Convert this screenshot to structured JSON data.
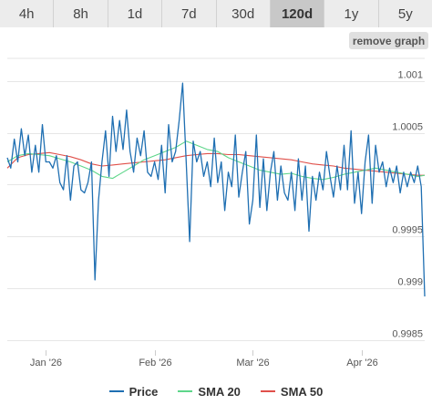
{
  "tabs": [
    {
      "label": "4h",
      "active": false
    },
    {
      "label": "8h",
      "active": false
    },
    {
      "label": "1d",
      "active": false
    },
    {
      "label": "7d",
      "active": false
    },
    {
      "label": "30d",
      "active": false
    },
    {
      "label": "120d",
      "active": true
    },
    {
      "label": "1y",
      "active": false
    },
    {
      "label": "5y",
      "active": false
    }
  ],
  "remove_graph_label": "remove graph",
  "colors": {
    "price": "#1f6fb2",
    "sma20": "#5ed68a",
    "sma50": "#e0504a",
    "grid": "#e6e6e6"
  },
  "chart_data": {
    "type": "line",
    "title": "",
    "xlabel": "",
    "ylabel": "",
    "ylim": [
      0.9984,
      1.00122
    ],
    "xlim": [
      "2025-12-21",
      "2026-04-19"
    ],
    "grid": true,
    "legend_position": "bottom-center",
    "y_ticks": [
      {
        "value": 1.001,
        "label": "1.001"
      },
      {
        "value": 1.0005,
        "label": "1.0005"
      },
      {
        "value": 1.0,
        "label": ""
      },
      {
        "value": 0.9995,
        "label": "0.9995"
      },
      {
        "value": 0.999,
        "label": "0.999"
      },
      {
        "value": 0.9985,
        "label": "0.9985"
      }
    ],
    "x_ticks": [
      {
        "value": "2026-01-01",
        "label": "Jan '26"
      },
      {
        "value": "2026-02-01",
        "label": "Feb '26"
      },
      {
        "value": "2026-03-01",
        "label": "Mar '26"
      },
      {
        "value": "2026-04-01",
        "label": "Apr '26"
      }
    ],
    "series": [
      {
        "name": "Price",
        "color_key": "price",
        "points": [
          [
            "2025-12-21",
            1.00026
          ],
          [
            "2025-12-22",
            1.00016
          ],
          [
            "2025-12-23",
            1.00044
          ],
          [
            "2025-12-24",
            1.00022
          ],
          [
            "2025-12-25",
            1.00054
          ],
          [
            "2025-12-26",
            1.00028
          ],
          [
            "2025-12-27",
            1.00048
          ],
          [
            "2025-12-28",
            1.00012
          ],
          [
            "2025-12-29",
            1.00038
          ],
          [
            "2025-12-30",
            1.00012
          ],
          [
            "2025-12-31",
            1.00058
          ],
          [
            "2026-01-01",
            1.00022
          ],
          [
            "2026-01-02",
            1.00022
          ],
          [
            "2026-01-03",
            1.00016
          ],
          [
            "2026-01-04",
            1.00028
          ],
          [
            "2026-01-05",
            1.00002
          ],
          [
            "2026-01-06",
            0.99995
          ],
          [
            "2026-01-07",
            1.00028
          ],
          [
            "2026-01-08",
            0.99985
          ],
          [
            "2026-01-09",
            1.00018
          ],
          [
            "2026-01-10",
            1.00022
          ],
          [
            "2026-01-11",
            0.99995
          ],
          [
            "2026-01-12",
            0.99992
          ],
          [
            "2026-01-13",
            1.00002
          ],
          [
            "2026-01-14",
            1.00022
          ],
          [
            "2026-01-15",
            0.99908
          ],
          [
            "2026-01-16",
            0.99985
          ],
          [
            "2026-01-17",
            1.00022
          ],
          [
            "2026-01-18",
            1.00052
          ],
          [
            "2026-01-19",
            1.00008
          ],
          [
            "2026-01-20",
            1.00066
          ],
          [
            "2026-01-21",
            1.00032
          ],
          [
            "2026-01-22",
            1.00062
          ],
          [
            "2026-01-23",
            1.00034
          ],
          [
            "2026-01-24",
            1.00072
          ],
          [
            "2026-01-25",
            1.00032
          ],
          [
            "2026-01-26",
            1.00012
          ],
          [
            "2026-01-27",
            1.00045
          ],
          [
            "2026-01-28",
            1.00028
          ],
          [
            "2026-01-29",
            1.00052
          ],
          [
            "2026-01-30",
            1.00012
          ],
          [
            "2026-01-31",
            1.00008
          ],
          [
            "2026-02-01",
            1.00022
          ],
          [
            "2026-02-02",
            1.00005
          ],
          [
            "2026-02-03",
            1.00038
          ],
          [
            "2026-02-04",
            0.99992
          ],
          [
            "2026-02-05",
            1.00058
          ],
          [
            "2026-02-06",
            1.00022
          ],
          [
            "2026-02-07",
            1.00032
          ],
          [
            "2026-02-08",
            1.00062
          ],
          [
            "2026-02-09",
            1.00098
          ],
          [
            "2026-02-10",
            1.00022
          ],
          [
            "2026-02-11",
            0.99945
          ],
          [
            "2026-02-12",
            1.00042
          ],
          [
            "2026-02-13",
            1.00022
          ],
          [
            "2026-02-14",
            1.00032
          ],
          [
            "2026-02-15",
            1.00008
          ],
          [
            "2026-02-16",
            1.00022
          ],
          [
            "2026-02-17",
            0.99998
          ],
          [
            "2026-02-18",
            1.00045
          ],
          [
            "2026-02-19",
            1.00002
          ],
          [
            "2026-02-20",
            1.00022
          ],
          [
            "2026-02-21",
            0.99975
          ],
          [
            "2026-02-22",
            1.00012
          ],
          [
            "2026-02-23",
            0.99998
          ],
          [
            "2026-02-24",
            1.00048
          ],
          [
            "2026-02-25",
            0.99988
          ],
          [
            "2026-02-26",
            1.00012
          ],
          [
            "2026-02-27",
            1.00032
          ],
          [
            "2026-02-28",
            0.99962
          ],
          [
            "2026-03-01",
            0.99985
          ],
          [
            "2026-03-02",
            1.00048
          ],
          [
            "2026-03-03",
            0.99978
          ],
          [
            "2026-03-04",
            1.00025
          ],
          [
            "2026-03-05",
            0.99975
          ],
          [
            "2026-03-06",
            1.00012
          ],
          [
            "2026-03-07",
            1.00032
          ],
          [
            "2026-03-08",
            0.99985
          ],
          [
            "2026-03-09",
            1.00018
          ],
          [
            "2026-03-10",
            0.99992
          ],
          [
            "2026-03-11",
            0.99985
          ],
          [
            "2026-03-12",
            1.00012
          ],
          [
            "2026-03-13",
            0.99975
          ],
          [
            "2026-03-14",
            1.00025
          ],
          [
            "2026-03-15",
            0.99985
          ],
          [
            "2026-03-16",
            1.00018
          ],
          [
            "2026-03-17",
            0.99955
          ],
          [
            "2026-03-18",
            1.00008
          ],
          [
            "2026-03-19",
            0.99985
          ],
          [
            "2026-03-20",
            1.00012
          ],
          [
            "2026-03-21",
            0.99995
          ],
          [
            "2026-03-22",
            1.00032
          ],
          [
            "2026-03-23",
            1.00008
          ],
          [
            "2026-03-24",
            0.99988
          ],
          [
            "2026-03-25",
            1.00018
          ],
          [
            "2026-03-26",
            0.99995
          ],
          [
            "2026-03-27",
            1.00038
          ],
          [
            "2026-03-28",
            0.99995
          ],
          [
            "2026-03-29",
            1.00052
          ],
          [
            "2026-03-30",
            0.99982
          ],
          [
            "2026-03-31",
            1.00012
          ],
          [
            "2026-04-01",
            0.99972
          ],
          [
            "2026-04-02",
            1.00022
          ],
          [
            "2026-04-03",
            1.00048
          ],
          [
            "2026-04-04",
            0.99982
          ],
          [
            "2026-04-05",
            1.00038
          ],
          [
            "2026-04-06",
            1.00012
          ],
          [
            "2026-04-07",
            1.00022
          ],
          [
            "2026-04-08",
            0.99998
          ],
          [
            "2026-04-09",
            1.00016
          ],
          [
            "2026-04-10",
            1.00002
          ],
          [
            "2026-04-11",
            1.00018
          ],
          [
            "2026-04-12",
            0.99992
          ],
          [
            "2026-04-13",
            1.00012
          ],
          [
            "2026-04-14",
            0.99998
          ],
          [
            "2026-04-15",
            1.00012
          ],
          [
            "2026-04-16",
            1.00002
          ],
          [
            "2026-04-17",
            1.00018
          ],
          [
            "2026-04-18",
            0.99998
          ],
          [
            "2026-04-19",
            0.99892
          ]
        ]
      },
      {
        "name": "SMA 20",
        "color_key": "sma20",
        "points": [
          [
            "2025-12-21",
            1.00022
          ],
          [
            "2025-12-24",
            1.00028
          ],
          [
            "2025-12-27",
            1.0003
          ],
          [
            "2025-12-30",
            1.00029
          ],
          [
            "2026-01-02",
            1.00028
          ],
          [
            "2026-01-05",
            1.00025
          ],
          [
            "2026-01-08",
            1.00022
          ],
          [
            "2026-01-11",
            1.00018
          ],
          [
            "2026-01-14",
            1.00014
          ],
          [
            "2026-01-17",
            1.00008
          ],
          [
            "2026-01-20",
            1.00006
          ],
          [
            "2026-01-23",
            1.00012
          ],
          [
            "2026-01-26",
            1.00018
          ],
          [
            "2026-01-29",
            1.00024
          ],
          [
            "2026-02-01",
            1.00028
          ],
          [
            "2026-02-04",
            1.00032
          ],
          [
            "2026-02-07",
            1.00036
          ],
          [
            "2026-02-10",
            1.00042
          ],
          [
            "2026-02-13",
            1.00038
          ],
          [
            "2026-02-16",
            1.00034
          ],
          [
            "2026-02-19",
            1.00032
          ],
          [
            "2026-02-22",
            1.00026
          ],
          [
            "2026-02-25",
            1.00022
          ],
          [
            "2026-02-28",
            1.00018
          ],
          [
            "2026-03-03",
            1.00014
          ],
          [
            "2026-03-06",
            1.00012
          ],
          [
            "2026-03-09",
            1.0001
          ],
          [
            "2026-03-12",
            1.00011
          ],
          [
            "2026-03-15",
            1.00008
          ],
          [
            "2026-03-18",
            1.00006
          ],
          [
            "2026-03-21",
            1.00005
          ],
          [
            "2026-03-24",
            1.00007
          ],
          [
            "2026-03-27",
            1.0001
          ],
          [
            "2026-03-30",
            1.00012
          ],
          [
            "2026-04-02",
            1.00014
          ],
          [
            "2026-04-05",
            1.00016
          ],
          [
            "2026-04-08",
            1.00014
          ],
          [
            "2026-04-11",
            1.00012
          ],
          [
            "2026-04-14",
            1.0001
          ],
          [
            "2026-04-17",
            1.00008
          ],
          [
            "2026-04-19",
            1.00009
          ]
        ]
      },
      {
        "name": "SMA 50",
        "color_key": "sma50",
        "points": [
          [
            "2025-12-21",
            1.00016
          ],
          [
            "2025-12-24",
            1.00026
          ],
          [
            "2025-12-27",
            1.00029
          ],
          [
            "2025-12-30",
            1.0003
          ],
          [
            "2026-01-02",
            1.00031
          ],
          [
            "2026-01-05",
            1.00029
          ],
          [
            "2026-01-08",
            1.00027
          ],
          [
            "2026-01-11",
            1.00024
          ],
          [
            "2026-01-14",
            1.0002
          ],
          [
            "2026-01-17",
            1.00018
          ],
          [
            "2026-01-20",
            1.00019
          ],
          [
            "2026-01-23",
            1.0002
          ],
          [
            "2026-01-26",
            1.00021
          ],
          [
            "2026-01-29",
            1.00022
          ],
          [
            "2026-02-01",
            1.00023
          ],
          [
            "2026-02-04",
            1.00024
          ],
          [
            "2026-02-07",
            1.00026
          ],
          [
            "2026-02-10",
            1.00028
          ],
          [
            "2026-02-13",
            1.00029
          ],
          [
            "2026-02-16",
            1.0003
          ],
          [
            "2026-02-19",
            1.0003
          ],
          [
            "2026-02-22",
            1.00029
          ],
          [
            "2026-02-25",
            1.00029
          ],
          [
            "2026-02-28",
            1.00028
          ],
          [
            "2026-03-03",
            1.00027
          ],
          [
            "2026-03-06",
            1.00026
          ],
          [
            "2026-03-09",
            1.00025
          ],
          [
            "2026-03-12",
            1.00024
          ],
          [
            "2026-03-15",
            1.00022
          ],
          [
            "2026-03-18",
            1.0002
          ],
          [
            "2026-03-21",
            1.00019
          ],
          [
            "2026-03-24",
            1.00018
          ],
          [
            "2026-03-27",
            1.00016
          ],
          [
            "2026-03-30",
            1.00015
          ],
          [
            "2026-04-02",
            1.00014
          ],
          [
            "2026-04-05",
            1.00013
          ],
          [
            "2026-04-08",
            1.00012
          ],
          [
            "2026-04-11",
            1.00011
          ],
          [
            "2026-04-14",
            1.0001
          ],
          [
            "2026-04-17",
            1.00009
          ],
          [
            "2026-04-19",
            1.00009
          ]
        ]
      }
    ]
  }
}
